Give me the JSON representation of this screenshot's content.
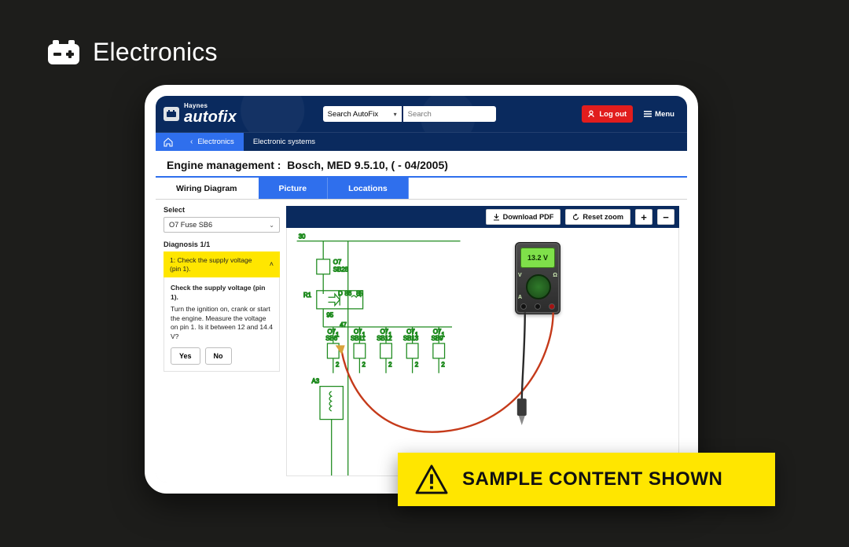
{
  "page": {
    "category_label": "Electronics",
    "sample_banner": "SAMPLE CONTENT SHOWN"
  },
  "colors": {
    "page_bg": "#1d1d1b",
    "brand_blue": "#0a2a5e",
    "accent_blue": "#2f6fed",
    "danger_red": "#e11d1d",
    "highlight_yellow": "#ffe600",
    "wire_green": "#1e8a1e",
    "wire_label_red": "#cc1f1f",
    "meter_screen": "#7fe04a",
    "probe_red": "#c53a1a",
    "probe_black": "#2a2a2a"
  },
  "topbar": {
    "logo_small": "Haynes",
    "logo_big": "autofix",
    "search_scope": "Search AutoFix",
    "search_placeholder": "Search",
    "logout_label": "Log out",
    "menu_label": "Menu"
  },
  "breadcrumb": {
    "back_label": "Electronics",
    "current": "Electronic systems"
  },
  "heading": {
    "prefix": "Engine management :",
    "value": "Bosch, MED 9.5.10, ( - 04/2005)"
  },
  "tabs": [
    {
      "id": "wiring",
      "label": "Wiring Diagram",
      "active": true
    },
    {
      "id": "picture",
      "label": "Picture",
      "active": false
    },
    {
      "id": "locations",
      "label": "Locations",
      "active": false
    }
  ],
  "sidebar": {
    "select_label": "Select",
    "select_value": "O7  Fuse  SB6",
    "diagnosis_heading": "Diagnosis 1/1",
    "step_heading": "1: Check the supply voltage (pin 1).",
    "step_title": "Check the supply voltage (pin 1).",
    "step_body": "Turn the ignition on, crank or start the engine. Measure the voltage on pin 1. Is it between 12 and 14.4 V?",
    "yes_label": "Yes",
    "no_label": "No"
  },
  "toolbar": {
    "download_label": "Download PDF",
    "reset_label": "Reset zoom",
    "zoom_in": "+",
    "zoom_out": "−"
  },
  "multimeter": {
    "reading": "13.2 V",
    "mode_v": "V",
    "mode_ohm": "Ω",
    "mode_a": "A"
  },
  "diagram": {
    "bus_label": "30",
    "r_label": "R1",
    "d_label": "D",
    "a_label": "A3",
    "pins": [
      "86",
      "85"
    ],
    "node_top": {
      "code": "O7",
      "sub": "SB28"
    },
    "side_pins": [
      "95",
      "47"
    ],
    "fuse_row": [
      {
        "code": "O7",
        "sub": "SB6"
      },
      {
        "code": "O7",
        "sub": "SB11"
      },
      {
        "code": "O7",
        "sub": "SB12"
      },
      {
        "code": "O7",
        "sub": "SB13"
      },
      {
        "code": "O7",
        "sub": "SB9"
      }
    ],
    "fuse_row_pins": [
      "1",
      "1",
      "1",
      "1",
      "1"
    ],
    "fuse_row_pins2": [
      "2",
      "2",
      "2",
      "2",
      "2"
    ],
    "style": {
      "wire_color": "#1e8a1e",
      "wire_width": 1.2,
      "box_stroke": "#1e8a1e",
      "label_color": "#000000",
      "red_label_color": "#cc1f1f",
      "font_size_pt": 7.5
    }
  }
}
